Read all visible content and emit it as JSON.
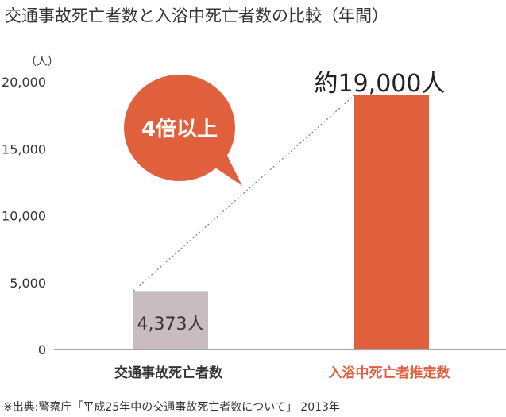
{
  "title": "交通事故死亡者数と入浴中死亡者数の比較（年間）",
  "colors": {
    "bar_traffic": "#c8bcc0",
    "bar_bath": "#e0603e",
    "bubble": "#e0603e",
    "label_traffic": "#333333",
    "label_bath": "#e0603e",
    "axis": "#888888"
  },
  "callout": {
    "text": "4倍以上"
  },
  "source": "※出典:警察庁「平成25年中の交通事故死亡者数について」 2013年",
  "chart_data": {
    "type": "bar",
    "title": "交通事故死亡者数と入浴中死亡者数の比較（年間）",
    "ylabel": "（人）",
    "xlabel": "",
    "ylim": [
      0,
      20000
    ],
    "yticks": [
      0,
      5000,
      10000,
      15000,
      20000
    ],
    "ytick_labels": [
      "0",
      "5,000",
      "10,000",
      "15,000",
      "20,000"
    ],
    "categories": [
      "交通事故死亡者数",
      "入浴中死亡者推定数"
    ],
    "values": [
      4373,
      19000
    ],
    "value_labels": [
      "4,373人",
      "約19,000人"
    ],
    "grid": false
  }
}
